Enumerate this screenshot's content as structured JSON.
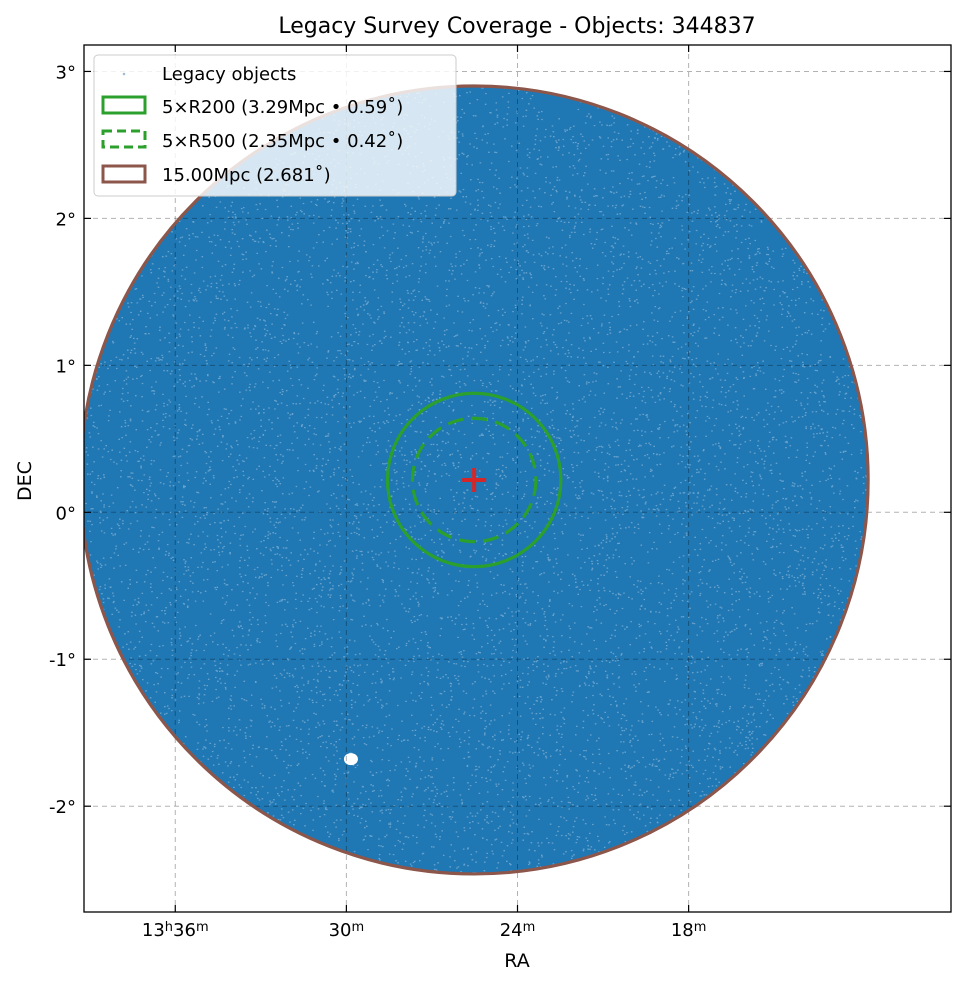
{
  "chart_data": {
    "type": "scatter",
    "title": "Legacy Survey Coverage - Objects: 344837",
    "xlabel": "RA",
    "ylabel": "DEC",
    "object_count": 344837,
    "x_axis": {
      "units": "RA (hours/minutes)",
      "direction": "decreasing to the right",
      "tick_labels": [
        "13h36m",
        "30m",
        "24m",
        "18m"
      ],
      "tick_values_deg": [
        204.0,
        202.5,
        201.0,
        199.5
      ],
      "xlim_deg": [
        204.8,
        197.2
      ]
    },
    "y_axis": {
      "units": "deg",
      "tick_labels": [
        "3°",
        "2°",
        "1°",
        "0°",
        "-1°",
        "-2°"
      ],
      "tick_values": [
        3,
        2,
        1,
        0,
        -1,
        -2
      ],
      "ylim": [
        -2.72,
        3.18
      ]
    },
    "grid": true,
    "legend_position": "top-left",
    "center": {
      "ra_deg": 201.38,
      "dec_deg": 0.22
    },
    "series": [
      {
        "name": "Legacy objects",
        "kind": "points",
        "color": "#1f77b4",
        "region": {
          "shape": "circle",
          "radius_deg": 2.681
        }
      },
      {
        "name": "5×R200 (3.29Mpc • 0.59˚)",
        "kind": "circle",
        "style": "solid",
        "color": "#2ca02c",
        "radius_deg": 0.59
      },
      {
        "name": "5×R500 (2.35Mpc • 0.42˚)",
        "kind": "circle",
        "style": "dashed",
        "color": "#2ca02c",
        "radius_deg": 0.42
      },
      {
        "name": "15.00Mpc (2.681˚)",
        "kind": "circle",
        "style": "solid",
        "color": "#8c564b",
        "radius_deg": 2.681
      }
    ],
    "marker": {
      "kind": "plus",
      "color": "#d62728"
    }
  }
}
